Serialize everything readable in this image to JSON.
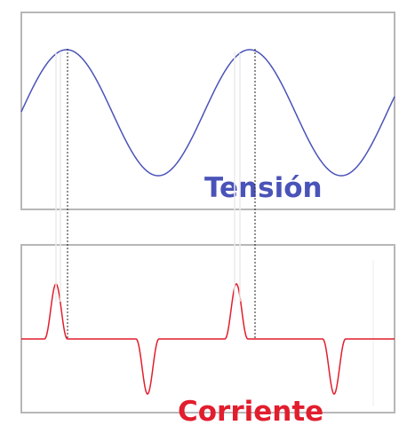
{
  "voltage": {
    "label": "Tensión",
    "color": "#4a53b8"
  },
  "current": {
    "label": "Corriente",
    "color": "#e21d2d"
  }
}
